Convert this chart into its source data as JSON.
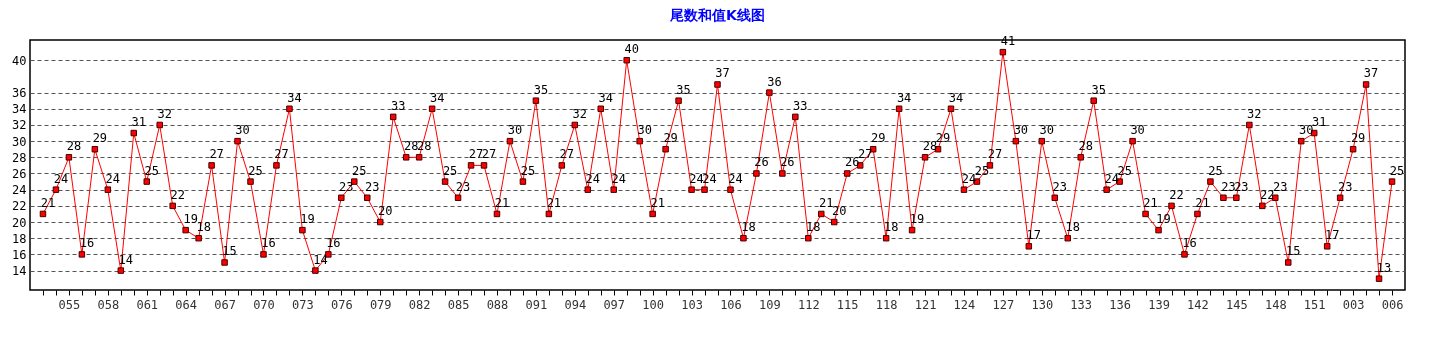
{
  "chart_data": {
    "type": "line",
    "title": "尾数和值K线图",
    "categories": [
      null,
      null,
      "055",
      null,
      null,
      "058",
      null,
      null,
      "061",
      null,
      null,
      "064",
      null,
      null,
      "067",
      null,
      null,
      "070",
      null,
      null,
      "073",
      null,
      null,
      "076",
      null,
      null,
      "079",
      null,
      null,
      "082",
      null,
      null,
      "085",
      null,
      null,
      "088",
      null,
      null,
      "091",
      null,
      null,
      "094",
      null,
      null,
      "097",
      null,
      null,
      "100",
      null,
      null,
      "103",
      null,
      null,
      "106",
      null,
      null,
      "109",
      null,
      null,
      "112",
      null,
      null,
      "115",
      null,
      null,
      "118",
      null,
      null,
      "121",
      null,
      null,
      "124",
      null,
      null,
      "127",
      null,
      null,
      "130",
      null,
      null,
      "133",
      null,
      null,
      "136",
      null,
      null,
      "139",
      null,
      null,
      "142",
      null,
      null,
      "145",
      null,
      null,
      "148",
      null,
      null,
      "151",
      null,
      null,
      "003",
      null,
      null,
      "006"
    ],
    "series": [
      {
        "color": "#ff0000",
        "values": [
          21,
          24,
          28,
          16,
          29,
          24,
          14,
          31,
          25,
          32,
          22,
          19,
          18,
          27,
          15,
          30,
          25,
          16,
          27,
          34,
          19,
          14,
          16,
          23,
          25,
          23,
          20,
          33,
          28,
          28,
          34,
          25,
          23,
          27,
          27,
          21,
          30,
          25,
          35,
          21,
          27,
          32,
          24,
          34,
          24,
          40,
          30,
          21,
          29,
          35,
          24,
          24,
          37,
          24,
          18,
          26,
          36,
          26,
          33,
          18,
          21,
          20,
          26,
          27,
          29,
          18,
          34,
          19,
          28,
          29,
          34,
          24,
          25,
          27,
          41,
          30,
          17,
          30,
          23,
          18,
          28,
          35,
          24,
          25,
          30,
          21,
          19,
          22,
          16,
          21,
          25,
          23,
          23,
          32,
          22,
          23,
          15,
          30,
          31,
          17,
          23,
          29,
          37,
          13,
          25
        ]
      }
    ],
    "ylim": [
      11.6,
      42.5
    ],
    "yticks": [
      14,
      16,
      18,
      20,
      22,
      24,
      26,
      28,
      30,
      32,
      34,
      36,
      40
    ],
    "grid": "y",
    "marker": "square",
    "line_style": "solid",
    "data_labels": true
  }
}
